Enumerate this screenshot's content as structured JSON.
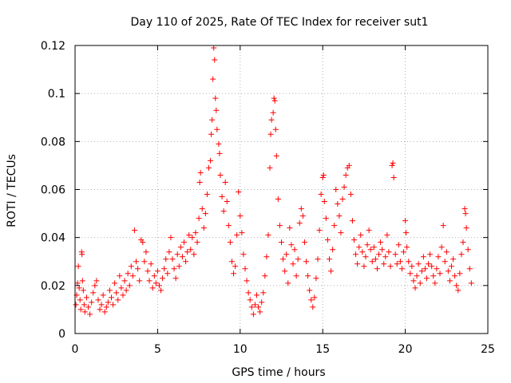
{
  "chart_data": {
    "type": "scatter",
    "title": "Day 110 of 2025, Rate Of TEC Index for receiver sut1",
    "xlabel": "GPS time / hours",
    "ylabel": "ROTI / TECUs",
    "xlim": [
      0,
      25
    ],
    "ylim": [
      0,
      0.12
    ],
    "x_ticks": [
      "0",
      "5",
      "10",
      "15",
      "20",
      "25"
    ],
    "y_ticks": [
      "0",
      "0.02",
      "0.04",
      "0.06",
      "0.08",
      "0.1",
      "0.12"
    ],
    "grid": true,
    "marker": "plus",
    "color": "#ff0000",
    "series": [
      {
        "values_desc": "",
        "points": [
          [
            0.05,
            0.012
          ],
          [
            0.1,
            0.016
          ],
          [
            0.15,
            0.021
          ],
          [
            0.2,
            0.028
          ],
          [
            0.25,
            0.019
          ],
          [
            0.3,
            0.014
          ],
          [
            0.35,
            0.01
          ],
          [
            0.4,
            0.034
          ],
          [
            0.42,
            0.033
          ],
          [
            0.45,
            0.022
          ],
          [
            0.5,
            0.018
          ],
          [
            0.55,
            0.012
          ],
          [
            0.6,
            0.009
          ],
          [
            0.7,
            0.015
          ],
          [
            0.8,
            0.011
          ],
          [
            0.9,
            0.008
          ],
          [
            1.0,
            0.013
          ],
          [
            1.1,
            0.017
          ],
          [
            1.2,
            0.02
          ],
          [
            1.3,
            0.022
          ],
          [
            1.4,
            0.014
          ],
          [
            1.5,
            0.01
          ],
          [
            1.6,
            0.012
          ],
          [
            1.7,
            0.016
          ],
          [
            1.8,
            0.009
          ],
          [
            1.9,
            0.011
          ],
          [
            2.0,
            0.013
          ],
          [
            2.1,
            0.018
          ],
          [
            2.2,
            0.015
          ],
          [
            2.3,
            0.012
          ],
          [
            2.4,
            0.021
          ],
          [
            2.5,
            0.017
          ],
          [
            2.6,
            0.014
          ],
          [
            2.7,
            0.024
          ],
          [
            2.8,
            0.019
          ],
          [
            2.9,
            0.016
          ],
          [
            3.0,
            0.022
          ],
          [
            3.1,
            0.018
          ],
          [
            3.2,
            0.025
          ],
          [
            3.3,
            0.02
          ],
          [
            3.4,
            0.028
          ],
          [
            3.5,
            0.024
          ],
          [
            3.6,
            0.043
          ],
          [
            3.7,
            0.03
          ],
          [
            3.8,
            0.027
          ],
          [
            3.9,
            0.022
          ],
          [
            4.0,
            0.039
          ],
          [
            4.1,
            0.038
          ],
          [
            4.2,
            0.03
          ],
          [
            4.3,
            0.034
          ],
          [
            4.4,
            0.026
          ],
          [
            4.5,
            0.022
          ],
          [
            4.6,
            0.029
          ],
          [
            4.7,
            0.019
          ],
          [
            4.8,
            0.024
          ],
          [
            4.9,
            0.021
          ],
          [
            5.0,
            0.026
          ],
          [
            5.1,
            0.02
          ],
          [
            5.2,
            0.018
          ],
          [
            5.3,
            0.023
          ],
          [
            5.4,
            0.027
          ],
          [
            5.5,
            0.031
          ],
          [
            5.6,
            0.025
          ],
          [
            5.7,
            0.034
          ],
          [
            5.8,
            0.04
          ],
          [
            5.9,
            0.031
          ],
          [
            6.0,
            0.027
          ],
          [
            6.1,
            0.023
          ],
          [
            6.2,
            0.033
          ],
          [
            6.3,
            0.028
          ],
          [
            6.4,
            0.036
          ],
          [
            6.5,
            0.032
          ],
          [
            6.6,
            0.038
          ],
          [
            6.7,
            0.03
          ],
          [
            6.8,
            0.034
          ],
          [
            6.9,
            0.041
          ],
          [
            7.0,
            0.035
          ],
          [
            7.1,
            0.04
          ],
          [
            7.2,
            0.033
          ],
          [
            7.3,
            0.042
          ],
          [
            7.4,
            0.038
          ],
          [
            7.5,
            0.048
          ],
          [
            7.55,
            0.063
          ],
          [
            7.6,
            0.067
          ],
          [
            7.7,
            0.052
          ],
          [
            7.8,
            0.044
          ],
          [
            7.9,
            0.05
          ],
          [
            8.0,
            0.058
          ],
          [
            8.1,
            0.069
          ],
          [
            8.2,
            0.072
          ],
          [
            8.25,
            0.083
          ],
          [
            8.3,
            0.089
          ],
          [
            8.35,
            0.106
          ],
          [
            8.4,
            0.119
          ],
          [
            8.45,
            0.114
          ],
          [
            8.5,
            0.098
          ],
          [
            8.55,
            0.093
          ],
          [
            8.6,
            0.085
          ],
          [
            8.7,
            0.079
          ],
          [
            8.75,
            0.075
          ],
          [
            8.8,
            0.066
          ],
          [
            8.9,
            0.057
          ],
          [
            9.0,
            0.051
          ],
          [
            9.1,
            0.063
          ],
          [
            9.2,
            0.055
          ],
          [
            9.3,
            0.045
          ],
          [
            9.4,
            0.038
          ],
          [
            9.5,
            0.03
          ],
          [
            9.6,
            0.025
          ],
          [
            9.7,
            0.028
          ],
          [
            9.8,
            0.041
          ],
          [
            9.9,
            0.059
          ],
          [
            10.0,
            0.049
          ],
          [
            10.1,
            0.042
          ],
          [
            10.2,
            0.033
          ],
          [
            10.3,
            0.027
          ],
          [
            10.4,
            0.022
          ],
          [
            10.5,
            0.017
          ],
          [
            10.6,
            0.014
          ],
          [
            10.7,
            0.011
          ],
          [
            10.8,
            0.008
          ],
          [
            10.9,
            0.012
          ],
          [
            11.0,
            0.016
          ],
          [
            11.1,
            0.011
          ],
          [
            11.2,
            0.009
          ],
          [
            11.3,
            0.013
          ],
          [
            11.4,
            0.017
          ],
          [
            11.5,
            0.024
          ],
          [
            11.6,
            0.032
          ],
          [
            11.7,
            0.041
          ],
          [
            11.8,
            0.069
          ],
          [
            11.85,
            0.083
          ],
          [
            11.9,
            0.089
          ],
          [
            12.0,
            0.092
          ],
          [
            12.05,
            0.098
          ],
          [
            12.1,
            0.097
          ],
          [
            12.15,
            0.085
          ],
          [
            12.2,
            0.074
          ],
          [
            12.3,
            0.056
          ],
          [
            12.4,
            0.045
          ],
          [
            12.5,
            0.038
          ],
          [
            12.6,
            0.031
          ],
          [
            12.7,
            0.026
          ],
          [
            12.8,
            0.033
          ],
          [
            12.9,
            0.021
          ],
          [
            13.0,
            0.044
          ],
          [
            13.1,
            0.037
          ],
          [
            13.2,
            0.029
          ],
          [
            13.3,
            0.035
          ],
          [
            13.4,
            0.024
          ],
          [
            13.5,
            0.031
          ],
          [
            13.6,
            0.046
          ],
          [
            13.7,
            0.052
          ],
          [
            13.8,
            0.049
          ],
          [
            13.9,
            0.038
          ],
          [
            14.0,
            0.03
          ],
          [
            14.1,
            0.024
          ],
          [
            14.2,
            0.018
          ],
          [
            14.3,
            0.014
          ],
          [
            14.4,
            0.011
          ],
          [
            14.5,
            0.015
          ],
          [
            14.6,
            0.023
          ],
          [
            14.7,
            0.031
          ],
          [
            14.8,
            0.043
          ],
          [
            14.9,
            0.058
          ],
          [
            15.0,
            0.065
          ],
          [
            15.05,
            0.066
          ],
          [
            15.1,
            0.055
          ],
          [
            15.2,
            0.048
          ],
          [
            15.3,
            0.039
          ],
          [
            15.4,
            0.031
          ],
          [
            15.5,
            0.026
          ],
          [
            15.6,
            0.035
          ],
          [
            15.7,
            0.045
          ],
          [
            15.8,
            0.06
          ],
          [
            15.9,
            0.054
          ],
          [
            16.0,
            0.049
          ],
          [
            16.1,
            0.042
          ],
          [
            16.2,
            0.056
          ],
          [
            16.3,
            0.061
          ],
          [
            16.4,
            0.066
          ],
          [
            16.5,
            0.069
          ],
          [
            16.6,
            0.07
          ],
          [
            16.7,
            0.058
          ],
          [
            16.8,
            0.047
          ],
          [
            16.9,
            0.039
          ],
          [
            17.0,
            0.033
          ],
          [
            17.1,
            0.029
          ],
          [
            17.2,
            0.036
          ],
          [
            17.3,
            0.041
          ],
          [
            17.4,
            0.034
          ],
          [
            17.5,
            0.028
          ],
          [
            17.6,
            0.032
          ],
          [
            17.7,
            0.037
          ],
          [
            17.8,
            0.043
          ],
          [
            17.9,
            0.035
          ],
          [
            18.0,
            0.03
          ],
          [
            18.1,
            0.036
          ],
          [
            18.2,
            0.031
          ],
          [
            18.3,
            0.027
          ],
          [
            18.4,
            0.033
          ],
          [
            18.5,
            0.038
          ],
          [
            18.6,
            0.035
          ],
          [
            18.7,
            0.029
          ],
          [
            18.8,
            0.032
          ],
          [
            18.9,
            0.041
          ],
          [
            19.0,
            0.034
          ],
          [
            19.1,
            0.028
          ],
          [
            19.2,
            0.07
          ],
          [
            19.25,
            0.071
          ],
          [
            19.3,
            0.065
          ],
          [
            19.4,
            0.033
          ],
          [
            19.5,
            0.029
          ],
          [
            19.6,
            0.037
          ],
          [
            19.7,
            0.03
          ],
          [
            19.8,
            0.027
          ],
          [
            19.9,
            0.034
          ],
          [
            20.0,
            0.047
          ],
          [
            20.05,
            0.042
          ],
          [
            20.1,
            0.036
          ],
          [
            20.2,
            0.03
          ],
          [
            20.3,
            0.025
          ],
          [
            20.4,
            0.028
          ],
          [
            20.5,
            0.022
          ],
          [
            20.6,
            0.019
          ],
          [
            20.7,
            0.024
          ],
          [
            20.8,
            0.029
          ],
          [
            20.9,
            0.021
          ],
          [
            21.0,
            0.026
          ],
          [
            21.1,
            0.032
          ],
          [
            21.2,
            0.027
          ],
          [
            21.3,
            0.023
          ],
          [
            21.4,
            0.029
          ],
          [
            21.5,
            0.033
          ],
          [
            21.6,
            0.028
          ],
          [
            21.7,
            0.024
          ],
          [
            21.8,
            0.021
          ],
          [
            21.9,
            0.027
          ],
          [
            22.0,
            0.032
          ],
          [
            22.1,
            0.025
          ],
          [
            22.2,
            0.036
          ],
          [
            22.3,
            0.045
          ],
          [
            22.4,
            0.03
          ],
          [
            22.5,
            0.034
          ],
          [
            22.6,
            0.026
          ],
          [
            22.7,
            0.022
          ],
          [
            22.8,
            0.028
          ],
          [
            22.9,
            0.031
          ],
          [
            23.0,
            0.024
          ],
          [
            23.1,
            0.02
          ],
          [
            23.2,
            0.018
          ],
          [
            23.3,
            0.025
          ],
          [
            23.4,
            0.033
          ],
          [
            23.5,
            0.038
          ],
          [
            23.6,
            0.052
          ],
          [
            23.65,
            0.05
          ],
          [
            23.7,
            0.044
          ],
          [
            23.8,
            0.035
          ],
          [
            23.9,
            0.027
          ],
          [
            24.0,
            0.021
          ]
        ]
      }
    ]
  }
}
